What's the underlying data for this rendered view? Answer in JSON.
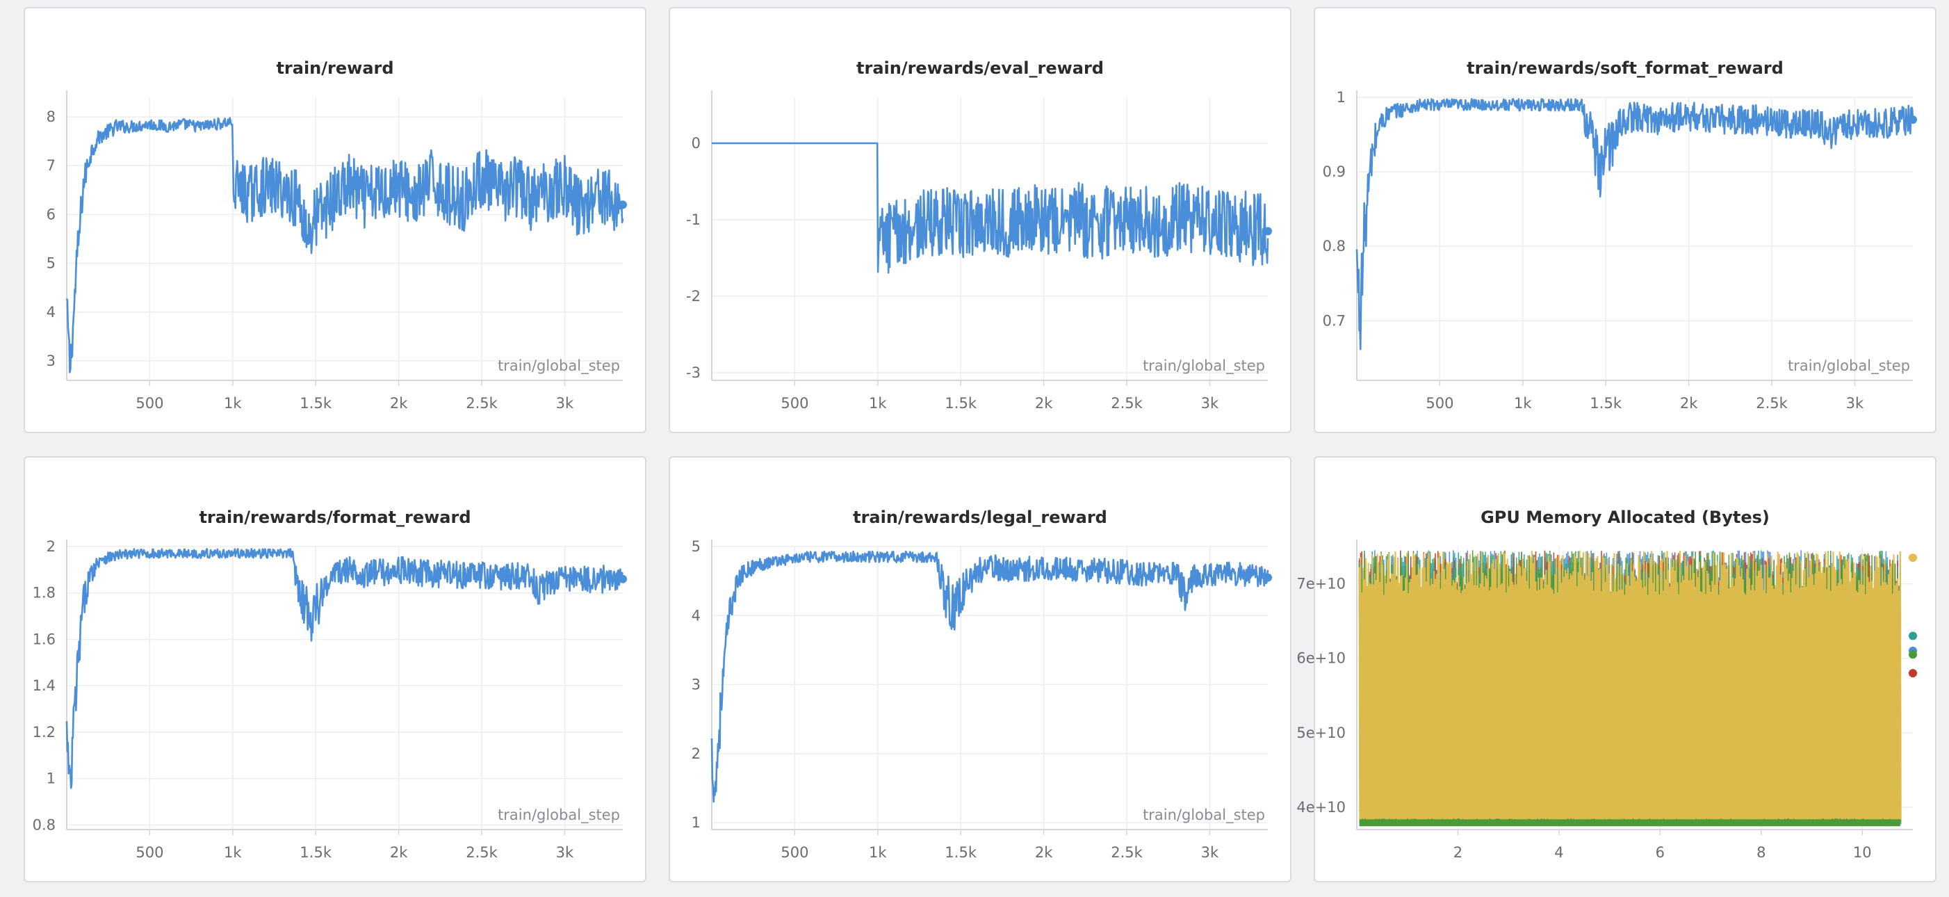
{
  "colors": {
    "series_blue": "#4a8ed9",
    "yellow": "#e4bd4c",
    "green": "#4a9a3a",
    "red": "#c0392b",
    "blue": "#4a8ed9",
    "teal": "#2aa198",
    "grid": "#eeeeef",
    "axis": "#d5d5da"
  },
  "chart_data": [
    {
      "type": "line",
      "title": "train/reward",
      "xlabel": "train/global_step",
      "xlim": [
        0,
        3350
      ],
      "ylim": [
        2.6,
        8.4
      ],
      "xticks": [
        500,
        1000,
        1500,
        2000,
        2500,
        3000
      ],
      "xtick_labels": [
        "500",
        "1k",
        "1.5k",
        "2k",
        "2.5k",
        "3k"
      ],
      "yticks": [
        3,
        4,
        5,
        6,
        7,
        8
      ],
      "ytick_labels": [
        "3",
        "4",
        "5",
        "6",
        "7",
        "8"
      ],
      "series": [
        {
          "x": [
            0,
            20,
            40,
            60,
            80,
            100,
            130,
            160,
            200,
            250,
            300,
            400,
            500,
            600,
            700,
            800,
            900,
            1000,
            1000,
            1100,
            1200,
            1300,
            1400,
            1450,
            1500,
            1600,
            1700,
            1800,
            1900,
            2000,
            2100,
            2200,
            2300,
            2400,
            2500,
            2600,
            2700,
            2800,
            2900,
            3000,
            3100,
            3200,
            3300,
            3350
          ],
          "values": [
            4.2,
            2.8,
            3.8,
            5.0,
            5.8,
            6.6,
            7.1,
            7.4,
            7.6,
            7.7,
            7.8,
            7.8,
            7.85,
            7.8,
            7.85,
            7.8,
            7.85,
            7.9,
            6.6,
            6.4,
            6.6,
            6.5,
            6.3,
            5.6,
            5.9,
            6.3,
            6.6,
            6.3,
            6.5,
            6.6,
            6.3,
            6.7,
            6.4,
            6.3,
            6.8,
            6.4,
            6.6,
            6.3,
            6.5,
            6.6,
            6.1,
            6.5,
            6.2,
            6.2
          ],
          "noise": [
            0.3,
            0.4,
            0.4,
            0.4,
            0.4,
            0.3,
            0.25,
            0.2,
            0.15,
            0.15,
            0.15,
            0.12,
            0.12,
            0.12,
            0.12,
            0.12,
            0.12,
            0.12,
            0.6,
            0.6,
            0.6,
            0.6,
            0.6,
            0.7,
            0.7,
            0.65,
            0.65,
            0.65,
            0.65,
            0.65,
            0.65,
            0.65,
            0.65,
            0.65,
            0.65,
            0.65,
            0.65,
            0.65,
            0.65,
            0.65,
            0.65,
            0.65,
            0.6,
            0.6
          ]
        }
      ]
    },
    {
      "type": "line",
      "title": "train/rewards/eval_reward",
      "xlabel": "train/global_step",
      "xlim": [
        0,
        3350
      ],
      "ylim": [
        -3.1,
        0.6
      ],
      "xticks": [
        500,
        1000,
        1500,
        2000,
        2500,
        3000
      ],
      "xtick_labels": [
        "500",
        "1k",
        "1.5k",
        "2k",
        "2.5k",
        "3k"
      ],
      "yticks": [
        -3,
        -2,
        -1,
        0
      ],
      "ytick_labels": [
        "-3",
        "-2",
        "-1",
        "0"
      ],
      "series": [
        {
          "x": [
            0,
            1000,
            1000,
            1100,
            1200,
            1300,
            1400,
            1500,
            1600,
            1700,
            1800,
            1900,
            2000,
            2100,
            2200,
            2300,
            2400,
            2500,
            2600,
            2700,
            2800,
            2900,
            3000,
            3100,
            3200,
            3300,
            3350
          ],
          "values": [
            0,
            0,
            -1.3,
            -1.2,
            -1.1,
            -1.05,
            -1.0,
            -1.1,
            -1.0,
            -1.0,
            -1.05,
            -0.95,
            -1.0,
            -1.05,
            -0.95,
            -1.1,
            -1.0,
            -1.0,
            -1.0,
            -1.1,
            -0.95,
            -1.0,
            -1.0,
            -1.05,
            -1.1,
            -1.1,
            -1.15
          ],
          "noise": [
            0,
            0,
            0.5,
            0.45,
            0.45,
            0.45,
            0.45,
            0.45,
            0.45,
            0.45,
            0.45,
            0.45,
            0.45,
            0.45,
            0.45,
            0.5,
            0.45,
            0.45,
            0.45,
            0.45,
            0.45,
            0.45,
            0.45,
            0.45,
            0.5,
            0.5,
            0.45
          ]
        }
      ]
    },
    {
      "type": "line",
      "title": "train/rewards/soft_format_reward",
      "xlabel": "train/global_step",
      "xlim": [
        0,
        3350
      ],
      "ylim": [
        0.62,
        1.0
      ],
      "xticks": [
        500,
        1000,
        1500,
        2000,
        2500,
        3000
      ],
      "xtick_labels": [
        "500",
        "1k",
        "1.5k",
        "2k",
        "2.5k",
        "3k"
      ],
      "yticks": [
        0.7,
        0.8,
        0.9,
        1.0
      ],
      "ytick_labels": [
        "0.7",
        "0.8",
        "0.9",
        "1"
      ],
      "series": [
        {
          "x": [
            0,
            20,
            40,
            60,
            80,
            100,
            130,
            160,
            200,
            300,
            400,
            600,
            800,
            1000,
            1200,
            1350,
            1400,
            1450,
            1500,
            1550,
            1600,
            1700,
            1800,
            2000,
            2200,
            2400,
            2600,
            2800,
            2850,
            2900,
            3000,
            3200,
            3350
          ],
          "values": [
            0.78,
            0.7,
            0.8,
            0.85,
            0.9,
            0.93,
            0.96,
            0.97,
            0.98,
            0.985,
            0.99,
            0.99,
            0.99,
            0.99,
            0.99,
            0.99,
            0.96,
            0.9,
            0.93,
            0.94,
            0.97,
            0.975,
            0.97,
            0.975,
            0.97,
            0.97,
            0.965,
            0.965,
            0.95,
            0.96,
            0.965,
            0.965,
            0.97
          ],
          "noise": [
            0.04,
            0.05,
            0.05,
            0.04,
            0.03,
            0.03,
            0.02,
            0.015,
            0.01,
            0.01,
            0.008,
            0.008,
            0.008,
            0.008,
            0.008,
            0.008,
            0.04,
            0.05,
            0.04,
            0.03,
            0.02,
            0.02,
            0.02,
            0.02,
            0.02,
            0.02,
            0.02,
            0.02,
            0.03,
            0.02,
            0.02,
            0.02,
            0.02
          ]
        }
      ]
    },
    {
      "type": "line",
      "title": "train/rewards/format_reward",
      "xlabel": "train/global_step",
      "xlim": [
        0,
        3350
      ],
      "ylim": [
        0.78,
        2.0
      ],
      "xticks": [
        500,
        1000,
        1500,
        2000,
        2500,
        3000
      ],
      "xtick_labels": [
        "500",
        "1k",
        "1.5k",
        "2k",
        "2.5k",
        "3k"
      ],
      "yticks": [
        0.8,
        1.0,
        1.2,
        1.4,
        1.6,
        1.8,
        2.0
      ],
      "ytick_labels": [
        "0.8",
        "1",
        "1.2",
        "1.4",
        "1.6",
        "1.8",
        "2"
      ],
      "series": [
        {
          "x": [
            0,
            20,
            40,
            60,
            80,
            100,
            130,
            160,
            200,
            300,
            400,
            600,
            800,
            1000,
            1200,
            1350,
            1400,
            1450,
            1500,
            1550,
            1600,
            1700,
            1800,
            2000,
            2200,
            2400,
            2600,
            2800,
            2850,
            2900,
            3000,
            3200,
            3350
          ],
          "values": [
            1.2,
            0.9,
            1.2,
            1.4,
            1.6,
            1.75,
            1.85,
            1.9,
            1.95,
            1.96,
            1.97,
            1.97,
            1.97,
            1.97,
            1.97,
            1.97,
            1.85,
            1.7,
            1.75,
            1.8,
            1.88,
            1.9,
            1.88,
            1.9,
            1.88,
            1.88,
            1.87,
            1.87,
            1.8,
            1.85,
            1.86,
            1.86,
            1.86
          ],
          "noise": [
            0.1,
            0.15,
            0.15,
            0.12,
            0.1,
            0.08,
            0.05,
            0.04,
            0.03,
            0.025,
            0.02,
            0.02,
            0.02,
            0.02,
            0.02,
            0.02,
            0.12,
            0.15,
            0.12,
            0.08,
            0.06,
            0.06,
            0.06,
            0.06,
            0.06,
            0.06,
            0.06,
            0.06,
            0.08,
            0.06,
            0.06,
            0.06,
            0.06
          ]
        }
      ]
    },
    {
      "type": "line",
      "title": "train/rewards/legal_reward",
      "xlabel": "train/global_step",
      "xlim": [
        0,
        3350
      ],
      "ylim": [
        0.9,
        5.0
      ],
      "xticks": [
        500,
        1000,
        1500,
        2000,
        2500,
        3000
      ],
      "xtick_labels": [
        "500",
        "1k",
        "1.5k",
        "2k",
        "2.5k",
        "3k"
      ],
      "yticks": [
        1,
        2,
        3,
        4,
        5
      ],
      "ytick_labels": [
        "1",
        "2",
        "3",
        "4",
        "5"
      ],
      "series": [
        {
          "x": [
            0,
            20,
            40,
            60,
            80,
            100,
            130,
            160,
            200,
            300,
            400,
            600,
            800,
            1000,
            1200,
            1350,
            1400,
            1450,
            1500,
            1550,
            1600,
            1700,
            1800,
            2000,
            2200,
            2400,
            2600,
            2800,
            2850,
            2900,
            3000,
            3200,
            3350
          ],
          "values": [
            2.0,
            1.4,
            2.2,
            2.8,
            3.4,
            3.9,
            4.3,
            4.5,
            4.65,
            4.75,
            4.8,
            4.85,
            4.85,
            4.85,
            4.85,
            4.85,
            4.4,
            4.1,
            4.3,
            4.5,
            4.65,
            4.7,
            4.65,
            4.7,
            4.65,
            4.65,
            4.6,
            4.6,
            4.3,
            4.55,
            4.6,
            4.6,
            4.55
          ],
          "noise": [
            0.4,
            0.4,
            0.4,
            0.35,
            0.3,
            0.25,
            0.2,
            0.15,
            0.12,
            0.1,
            0.08,
            0.08,
            0.08,
            0.08,
            0.08,
            0.08,
            0.35,
            0.4,
            0.3,
            0.25,
            0.2,
            0.18,
            0.18,
            0.18,
            0.18,
            0.18,
            0.18,
            0.18,
            0.25,
            0.18,
            0.18,
            0.18,
            0.18
          ]
        }
      ]
    },
    {
      "type": "line",
      "title": "GPU Memory Allocated (Bytes)",
      "xlabel": "",
      "xlim": [
        0,
        11
      ],
      "ylim": [
        37000000000.0,
        75000000000.0
      ],
      "xticks": [
        2,
        4,
        6,
        8,
        10
      ],
      "xtick_labels": [
        "2",
        "4",
        "6",
        "8",
        "10"
      ],
      "yticks": [
        40000000000.0,
        50000000000.0,
        60000000000.0,
        70000000000.0
      ],
      "ytick_labels": [
        "4e+10",
        "5e+10",
        "6e+10",
        "7e+10"
      ],
      "series": [
        {
          "color_key": "blue",
          "low": 38000000000.0,
          "high": 74500000000.0,
          "end": 61000000000.0
        },
        {
          "color_key": "red",
          "low": 38000000000.0,
          "high": 74500000000.0,
          "end": 58000000000.0
        },
        {
          "color_key": "teal",
          "low": 38000000000.0,
          "high": 74500000000.0,
          "end": 63000000000.0
        },
        {
          "color_key": "green",
          "low": 37500000000.0,
          "high": 74500000000.0,
          "end": 60500000000.0
        },
        {
          "color_key": "yellow",
          "low": 38000000000.0,
          "high": 74500000000.0,
          "end": 73500000000.0
        }
      ]
    }
  ]
}
